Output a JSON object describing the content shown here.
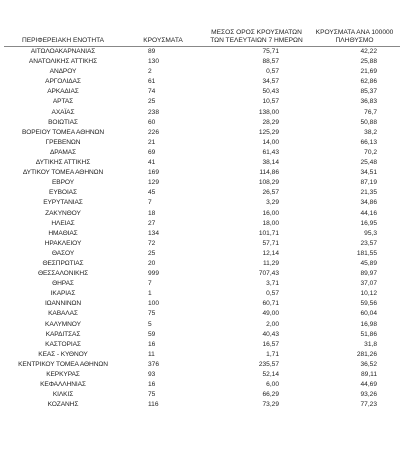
{
  "table": {
    "headers": [
      "ΠΕΡΙΦΕΡΕΙΑΚΗ ΕΝΟΤΗΤΑ",
      "ΚΡΟΥΣΜΑΤΑ",
      "ΜΕΣΟΣ ΟΡΟΣ ΚΡΟΥΣΜΑΤΩΝ ΤΩΝ ΤΕΛΕΥΤΑΙΩΝ 7 ΗΜΕΡΩΝ",
      "ΚΡΟΥΣΜΑΤΑ ΑΝΑ 100000 ΠΛΗΘΥΣΜΟ"
    ],
    "rows": [
      [
        "ΑΙΤΩΛΟΑΚΑΡΝΑΝΙΑΣ",
        "89",
        "75,71",
        "42,22"
      ],
      [
        "ΑΝΑΤΟΛΙΚΗΣ ΑΤΤΙΚΗΣ",
        "130",
        "88,57",
        "25,88"
      ],
      [
        "ΑΝΔΡΟΥ",
        "2",
        "0,57",
        "21,69"
      ],
      [
        "ΑΡΓΟΛΙΔΑΣ",
        "61",
        "34,57",
        "62,86"
      ],
      [
        "ΑΡΚΑΔΙΑΣ",
        "74",
        "50,43",
        "85,37"
      ],
      [
        "ΑΡΤΑΣ",
        "25",
        "10,57",
        "36,83"
      ],
      [
        "ΑΧΑΪΑΣ",
        "238",
        "138,00",
        "76,7"
      ],
      [
        "ΒΟΙΩΤΙΑΣ",
        "60",
        "28,29",
        "50,88"
      ],
      [
        "ΒΟΡΕΙΟΥ ΤΟΜΕΑ ΑΘΗΝΩΝ",
        "226",
        "125,29",
        "38,2"
      ],
      [
        "ΓΡΕΒΕΝΩΝ",
        "21",
        "14,00",
        "66,13"
      ],
      [
        "ΔΡΑΜΑΣ",
        "69",
        "61,43",
        "70,2"
      ],
      [
        "ΔΥΤΙΚΗΣ ΑΤΤΙΚΗΣ",
        "41",
        "38,14",
        "25,48"
      ],
      [
        "ΔΥΤΙΚΟΥ ΤΟΜΕΑ ΑΘΗΝΩΝ",
        "169",
        "114,86",
        "34,51"
      ],
      [
        "ΕΒΡΟΥ",
        "129",
        "108,29",
        "87,19"
      ],
      [
        "ΕΥΒΟΙΑΣ",
        "45",
        "26,57",
        "21,35"
      ],
      [
        "ΕΥΡΥΤΑΝΙΑΣ",
        "7",
        "3,29",
        "34,86"
      ],
      [
        "ΖΑΚΥΝΘΟΥ",
        "18",
        "16,00",
        "44,16"
      ],
      [
        "ΗΛΕΙΑΣ",
        "27",
        "18,00",
        "16,95"
      ],
      [
        "ΗΜΑΘΙΑΣ",
        "134",
        "101,71",
        "95,3"
      ],
      [
        "ΗΡΑΚΛΕΙΟΥ",
        "72",
        "57,71",
        "23,57"
      ],
      [
        "ΘΑΣΟΥ",
        "25",
        "12,14",
        "181,55"
      ],
      [
        "ΘΕΣΠΡΩΤΙΑΣ",
        "20",
        "11,29",
        "45,89"
      ],
      [
        "ΘΕΣΣΑΛΟΝΙΚΗΣ",
        "999",
        "707,43",
        "89,97"
      ],
      [
        "ΘΗΡΑΣ",
        "7",
        "3,71",
        "37,07"
      ],
      [
        "ΙΚΑΡΙΑΣ",
        "1",
        "0,57",
        "10,12"
      ],
      [
        "ΙΩΑΝΝΙΝΩΝ",
        "100",
        "60,71",
        "59,56"
      ],
      [
        "ΚΑΒΑΛΑΣ",
        "75",
        "49,00",
        "60,04"
      ],
      [
        "ΚΑΛΥΜΝΟΥ",
        "5",
        "2,00",
        "16,98"
      ],
      [
        "ΚΑΡΔΙΤΣΑΣ",
        "59",
        "40,43",
        "51,86"
      ],
      [
        "ΚΑΣΤΟΡΙΑΣ",
        "16",
        "16,57",
        "31,8"
      ],
      [
        "ΚΕΑΣ - ΚΥΘΝΟΥ",
        "11",
        "1,71",
        "281,26"
      ],
      [
        "ΚΕΝΤΡΙΚΟΥ ΤΟΜΕΑ ΑΘΗΝΩΝ",
        "376",
        "235,57",
        "36,52"
      ],
      [
        "ΚΕΡΚΥΡΑΣ",
        "93",
        "52,14",
        "89,11"
      ],
      [
        "ΚΕΦΑΛΛΗΝΙΑΣ",
        "16",
        "6,00",
        "44,69"
      ],
      [
        "ΚΙΛΚΙΣ",
        "75",
        "66,29",
        "93,26"
      ],
      [
        "ΚΟΖΑΝΗΣ",
        "116",
        "73,29",
        "77,23"
      ]
    ]
  }
}
